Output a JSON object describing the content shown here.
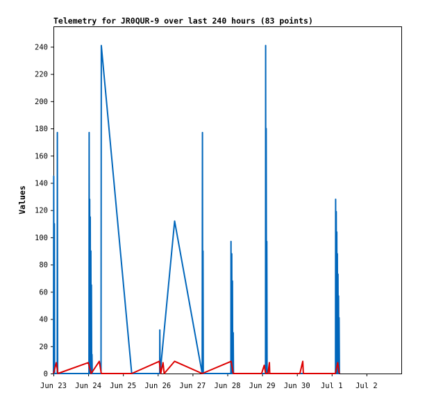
{
  "chart_data": {
    "type": "line",
    "title": "Telemetry for JR0QUR-9 over last 240 hours (83 points)",
    "xlabel": "",
    "ylabel": "Values",
    "xlim": [
      0,
      240
    ],
    "ylim": [
      0,
      255
    ],
    "x_unit": "hours since Jun 23 00:00",
    "x_ticks": [
      {
        "x": 0,
        "label": "Jun 23"
      },
      {
        "x": 24,
        "label": "Jun 24"
      },
      {
        "x": 48,
        "label": "Jun 25"
      },
      {
        "x": 72,
        "label": "Jun 26"
      },
      {
        "x": 96,
        "label": "Jun 27"
      },
      {
        "x": 120,
        "label": "Jun 28"
      },
      {
        "x": 144,
        "label": "Jun 29"
      },
      {
        "x": 168,
        "label": "Jun 30"
      },
      {
        "x": 192,
        "label": "Jul 1"
      },
      {
        "x": 216,
        "label": "Jul 2"
      }
    ],
    "y_ticks": [
      0,
      20,
      40,
      60,
      80,
      100,
      120,
      140,
      160,
      180,
      200,
      220,
      240
    ],
    "grid": false,
    "legend": "none",
    "series": [
      {
        "color": "#0066bb",
        "points": [
          [
            0.0,
            0
          ],
          [
            0.2,
            145
          ],
          [
            0.4,
            0
          ],
          [
            0.6,
            110
          ],
          [
            0.8,
            0
          ],
          [
            2.6,
            0
          ],
          [
            2.7,
            177
          ],
          [
            2.9,
            0
          ],
          [
            24.5,
            0
          ],
          [
            24.6,
            177
          ],
          [
            24.8,
            0
          ],
          [
            25.0,
            128
          ],
          [
            25.2,
            0
          ],
          [
            25.4,
            115
          ],
          [
            25.6,
            0
          ],
          [
            25.8,
            90
          ],
          [
            26.0,
            0
          ],
          [
            26.2,
            65
          ],
          [
            26.4,
            0
          ],
          [
            26.6,
            14
          ],
          [
            26.8,
            0
          ],
          [
            32.8,
            0
          ],
          [
            33.0,
            241
          ],
          [
            54.0,
            0
          ],
          [
            73.3,
            0
          ],
          [
            73.4,
            32
          ],
          [
            73.6,
            0
          ],
          [
            83.6,
            112
          ],
          [
            102.6,
            0
          ],
          [
            102.8,
            177
          ],
          [
            103.0,
            0
          ],
          [
            103.2,
            90
          ],
          [
            103.4,
            0
          ],
          [
            122.4,
            0
          ],
          [
            122.5,
            97
          ],
          [
            122.7,
            0
          ],
          [
            123.0,
            88
          ],
          [
            123.2,
            0
          ],
          [
            123.5,
            68
          ],
          [
            123.7,
            0
          ],
          [
            124.0,
            30
          ],
          [
            124.2,
            0
          ],
          [
            146.3,
            0
          ],
          [
            146.4,
            241
          ],
          [
            146.6,
            0
          ],
          [
            146.8,
            180
          ],
          [
            147.0,
            0
          ],
          [
            147.2,
            97
          ],
          [
            147.4,
            0
          ],
          [
            194.6,
            0
          ],
          [
            194.7,
            128
          ],
          [
            194.9,
            0
          ],
          [
            195.1,
            119
          ],
          [
            195.3,
            0
          ],
          [
            195.5,
            104
          ],
          [
            195.7,
            0
          ],
          [
            195.9,
            88
          ],
          [
            196.1,
            0
          ],
          [
            196.3,
            73
          ],
          [
            196.5,
            0
          ],
          [
            196.7,
            57
          ],
          [
            196.9,
            0
          ],
          [
            197.1,
            41
          ],
          [
            197.3,
            0
          ]
        ]
      },
      {
        "color": "#dd0000",
        "points": [
          [
            0.0,
            0
          ],
          [
            2.0,
            8
          ],
          [
            3.0,
            0
          ],
          [
            24.0,
            8
          ],
          [
            26.0,
            0
          ],
          [
            31.6,
            9
          ],
          [
            33.0,
            0
          ],
          [
            54.0,
            0
          ],
          [
            73.0,
            9
          ],
          [
            74.0,
            0
          ],
          [
            75.6,
            8
          ],
          [
            76.4,
            0
          ],
          [
            83.6,
            9
          ],
          [
            102.6,
            0
          ],
          [
            122.6,
            9
          ],
          [
            124.0,
            0
          ],
          [
            143.6,
            0
          ],
          [
            145.4,
            6
          ],
          [
            146.4,
            0
          ],
          [
            148.0,
            0
          ],
          [
            149.0,
            8
          ],
          [
            149.2,
            0
          ],
          [
            170.0,
            0
          ],
          [
            172.0,
            9
          ],
          [
            172.4,
            0
          ],
          [
            194.5,
            0
          ],
          [
            196.1,
            8
          ],
          [
            197.2,
            0
          ]
        ]
      }
    ]
  }
}
